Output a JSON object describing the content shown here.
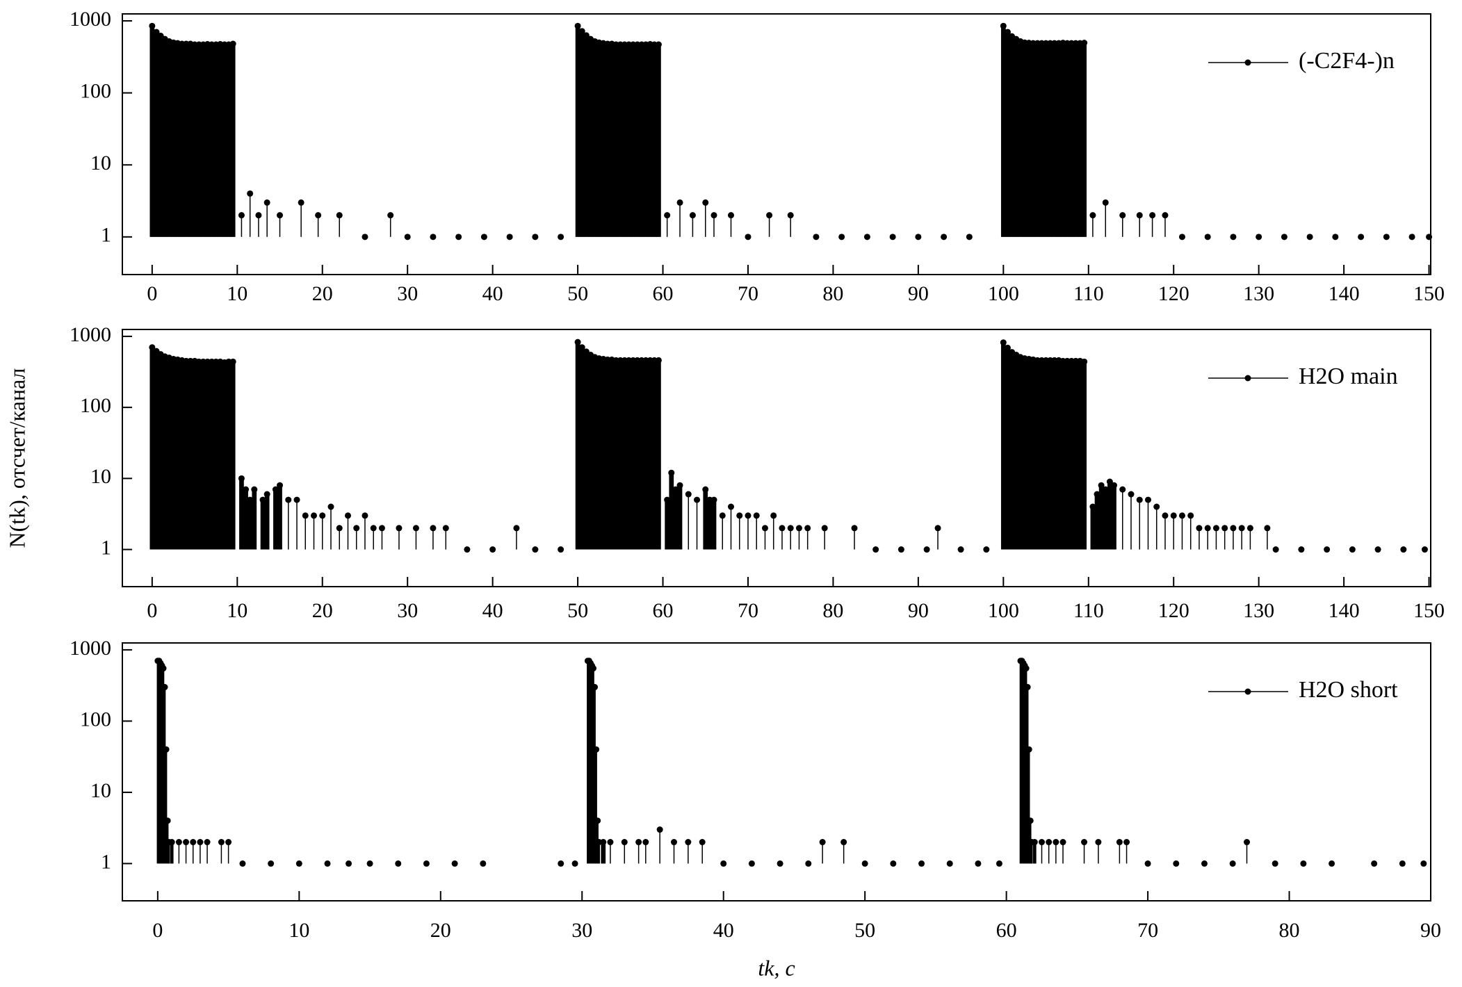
{
  "chart_data": [
    {
      "type": "impulse",
      "yscale": "log",
      "legend": "upper right",
      "xlim": [
        -3.5,
        150.2
      ],
      "ylim": [
        0.3,
        1250
      ],
      "xticks": [
        0,
        10,
        20,
        30,
        40,
        50,
        60,
        70,
        80,
        90,
        100,
        110,
        120,
        130,
        140,
        150
      ],
      "yticks": [
        1,
        10,
        100,
        1000
      ],
      "x": [
        0,
        0.5,
        1,
        1.5,
        2,
        2.5,
        3,
        3.5,
        4,
        4.5,
        5,
        5.5,
        6,
        6.5,
        7,
        7.5,
        8,
        8.5,
        9,
        9.5,
        10.5,
        11.5,
        12.5,
        13.5,
        15,
        17.5,
        19.5,
        22,
        25,
        28,
        30,
        33,
        36,
        39,
        42,
        45,
        48,
        50,
        50.5,
        51,
        51.5,
        52,
        52.5,
        53,
        53.5,
        54,
        54.5,
        55,
        55.5,
        56,
        56.5,
        57,
        57.5,
        58,
        58.5,
        59,
        59.5,
        60.5,
        62,
        63.5,
        65,
        66,
        68,
        70,
        72.5,
        75,
        78,
        81,
        84,
        87,
        90,
        93,
        96,
        100,
        100.5,
        101,
        101.5,
        102,
        102.5,
        103,
        103.5,
        104,
        104.5,
        105,
        105.5,
        106,
        106.5,
        107,
        107.5,
        108,
        108.5,
        109,
        109.5,
        110.5,
        112,
        114,
        116,
        117.5,
        119,
        121,
        124,
        127,
        130,
        133,
        136,
        139,
        142,
        145,
        148,
        150
      ],
      "series": [
        {
          "name": "(-C2F4-)n",
          "color": "#000000",
          "values": [
            850,
            700,
            620,
            560,
            520,
            500,
            490,
            480,
            480,
            480,
            470,
            470,
            470,
            475,
            470,
            470,
            475,
            470,
            470,
            480,
            2,
            4,
            2,
            3,
            2,
            3,
            2,
            2,
            1,
            2,
            1,
            1,
            1,
            1,
            1,
            1,
            1,
            850,
            720,
            630,
            560,
            520,
            500,
            490,
            480,
            480,
            470,
            470,
            470,
            470,
            470,
            470,
            470,
            470,
            475,
            470,
            470,
            2,
            3,
            2,
            3,
            2,
            2,
            1,
            2,
            2,
            1,
            1,
            1,
            1,
            1,
            1,
            1,
            850,
            700,
            610,
            560,
            520,
            500,
            495,
            490,
            490,
            490,
            490,
            490,
            490,
            490,
            495,
            490,
            490,
            490,
            490,
            495,
            2,
            3,
            2,
            2,
            2,
            2,
            1,
            1,
            1,
            1,
            1,
            1,
            1,
            1,
            1,
            1,
            1
          ]
        }
      ]
    },
    {
      "type": "impulse",
      "yscale": "log",
      "legend": "upper right",
      "xlim": [
        -3.5,
        150.2
      ],
      "ylim": [
        0.3,
        1250
      ],
      "ylabel": "N(tk), отсчет/канал",
      "xticks": [
        0,
        10,
        20,
        30,
        40,
        50,
        60,
        70,
        80,
        90,
        100,
        110,
        120,
        130,
        140,
        150
      ],
      "yticks": [
        1,
        10,
        100,
        1000
      ],
      "x": [
        0,
        0.5,
        1,
        1.5,
        2,
        2.5,
        3,
        3.5,
        4,
        4.5,
        5,
        5.5,
        6,
        6.5,
        7,
        7.5,
        8,
        8.5,
        9,
        9.5,
        10.5,
        11,
        11.5,
        12,
        13,
        13.5,
        14.5,
        15,
        16,
        17,
        18,
        19,
        20,
        21,
        22,
        23,
        24,
        25,
        26,
        27,
        29,
        31,
        33,
        34.5,
        37,
        40,
        42.8,
        45,
        48,
        50,
        50.5,
        51,
        51.5,
        52,
        52.5,
        53,
        53.5,
        54,
        54.5,
        55,
        55.5,
        56,
        56.5,
        57,
        57.5,
        58,
        58.5,
        59,
        59.5,
        60.5,
        61,
        61.5,
        62,
        63,
        64,
        65,
        65.5,
        66,
        67,
        68,
        69,
        70,
        71,
        72,
        73,
        74,
        75,
        76,
        77,
        79,
        82.5,
        85,
        88,
        91,
        92.3,
        95,
        98,
        100,
        100.5,
        101,
        101.5,
        102,
        102.5,
        103,
        103.5,
        104,
        104.5,
        105,
        105.5,
        106,
        106.5,
        107,
        107.5,
        108,
        108.5,
        109,
        109.5,
        110.5,
        111,
        111.5,
        112,
        112.5,
        113,
        114,
        115,
        116,
        117,
        118,
        119,
        120,
        121,
        122,
        123,
        124,
        125,
        126,
        127,
        128,
        129,
        131,
        132,
        135,
        138,
        141,
        144,
        147,
        149.5
      ],
      "series": [
        {
          "name": "H2O main",
          "color": "#000000",
          "values": [
            700,
            620,
            560,
            520,
            500,
            480,
            470,
            460,
            450,
            450,
            450,
            440,
            440,
            440,
            440,
            440,
            440,
            430,
            440,
            440,
            10,
            7,
            5,
            7,
            5,
            6,
            7,
            8,
            5,
            5,
            3,
            3,
            3,
            4,
            2,
            3,
            2,
            3,
            2,
            2,
            2,
            2,
            2,
            2,
            1,
            1,
            2,
            1,
            1,
            830,
            700,
            610,
            550,
            510,
            490,
            480,
            470,
            470,
            460,
            460,
            460,
            460,
            460,
            460,
            460,
            460,
            460,
            460,
            460,
            5,
            12,
            7,
            8,
            6,
            5,
            7,
            5,
            5,
            3,
            4,
            3,
            3,
            3,
            2,
            3,
            2,
            2,
            2,
            2,
            2,
            2,
            1,
            1,
            1,
            2,
            1,
            1,
            820,
            690,
            600,
            550,
            510,
            490,
            480,
            470,
            460,
            460,
            460,
            460,
            460,
            460,
            450,
            450,
            450,
            450,
            450,
            440,
            4,
            6,
            8,
            7,
            9,
            8,
            7,
            6,
            5,
            5,
            4,
            3,
            3,
            3,
            3,
            2,
            2,
            2,
            2,
            2,
            2,
            2,
            2,
            1,
            1,
            1,
            1,
            1,
            1,
            1
          ]
        }
      ]
    },
    {
      "type": "impulse",
      "yscale": "log",
      "legend": "upper right",
      "xlim": [
        -2.5,
        90
      ],
      "ylim": [
        0.3,
        1250
      ],
      "xlabel": "tk, c",
      "xticks": [
        0,
        10,
        20,
        30,
        40,
        50,
        60,
        70,
        80,
        90
      ],
      "yticks": [
        1,
        10,
        100,
        1000
      ],
      "x": [
        0,
        0.1,
        0.2,
        0.3,
        0.4,
        0.5,
        0.6,
        0.7,
        0.8,
        1,
        1.5,
        2,
        2.5,
        3,
        3.5,
        4.5,
        5,
        6,
        8,
        10,
        12,
        13.5,
        15,
        17,
        19,
        21,
        23,
        28.5,
        29.5,
        30.4,
        30.5,
        30.6,
        30.7,
        30.8,
        30.9,
        31,
        31.1,
        31.2,
        31.5,
        32,
        33,
        34,
        34.5,
        35.5,
        36.5,
        37.5,
        38.5,
        40,
        42,
        44,
        46,
        47,
        48.5,
        50,
        52,
        54,
        56,
        58,
        59.5,
        61,
        61.1,
        61.2,
        61.3,
        61.4,
        61.5,
        61.6,
        61.7,
        61.8,
        62,
        62.5,
        63,
        63.5,
        64,
        65.5,
        66.5,
        68,
        68.5,
        70,
        72,
        74,
        76,
        77,
        79,
        81,
        83,
        86,
        88,
        89.5
      ],
      "series": [
        {
          "name": "H2O short",
          "color": "#000000",
          "values": [
            700,
            700,
            650,
            600,
            550,
            300,
            40,
            4,
            2,
            2,
            2,
            2,
            2,
            2,
            2,
            2,
            2,
            1,
            1,
            1,
            1,
            1,
            1,
            1,
            1,
            1,
            1,
            1,
            1,
            700,
            700,
            650,
            600,
            550,
            300,
            40,
            4,
            2,
            2,
            2,
            2,
            2,
            2,
            3,
            2,
            2,
            2,
            1,
            1,
            1,
            1,
            2,
            2,
            1,
            1,
            1,
            1,
            1,
            1,
            700,
            700,
            650,
            600,
            550,
            300,
            40,
            4,
            2,
            2,
            2,
            2,
            2,
            2,
            2,
            2,
            2,
            2,
            1,
            1,
            1,
            1,
            2,
            1,
            1,
            1,
            1,
            1,
            1
          ]
        }
      ]
    }
  ]
}
